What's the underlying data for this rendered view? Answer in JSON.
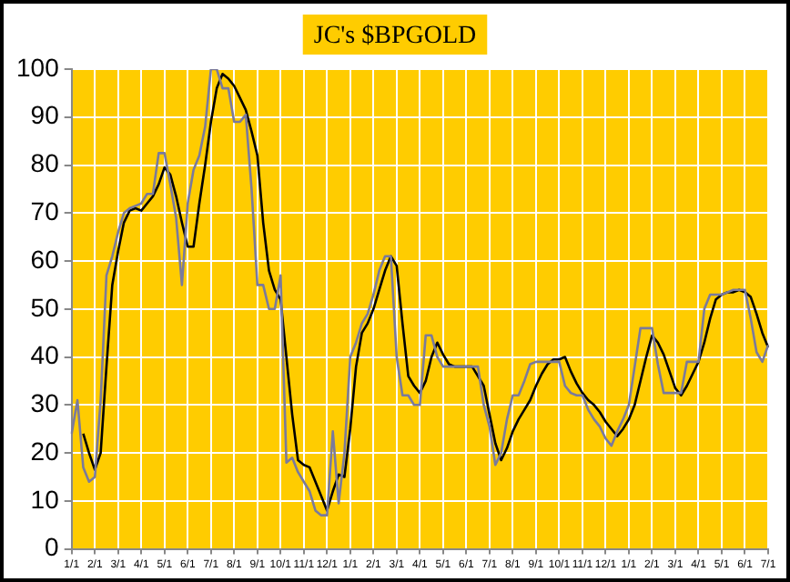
{
  "chart_data": {
    "type": "line",
    "title": "JC's $BPGOLD",
    "categories": [
      "1/1",
      null,
      null,
      null,
      "2/1",
      null,
      null,
      null,
      "3/1",
      null,
      null,
      null,
      "4/1",
      null,
      null,
      null,
      "5/1",
      null,
      null,
      null,
      "6/1",
      null,
      null,
      null,
      "7/1",
      null,
      null,
      null,
      "8/1",
      null,
      null,
      null,
      "9/1",
      null,
      null,
      null,
      "10/1",
      null,
      null,
      null,
      "11/1",
      null,
      null,
      null,
      "12/1",
      null,
      null,
      null,
      "1/1",
      null,
      null,
      null,
      "2/1",
      null,
      null,
      null,
      "3/1",
      null,
      null,
      null,
      "4/1",
      null,
      null,
      null,
      "5/1",
      null,
      null,
      null,
      "6/1",
      null,
      null,
      null,
      "7/1",
      null,
      null,
      null,
      "8/1",
      null,
      null,
      null,
      "9/1",
      null,
      null,
      null,
      "10/1",
      null,
      null,
      null,
      "11/1",
      null,
      null,
      null,
      "12/1",
      null,
      null,
      null,
      "1/1",
      null,
      null,
      null,
      "2/1",
      null,
      null,
      null,
      "3/1",
      null,
      null,
      null,
      "4/1",
      null,
      null,
      null,
      "5/1",
      null,
      null,
      null,
      "6/1",
      null,
      null,
      null,
      "7/1"
    ],
    "ylim": [
      0,
      100
    ],
    "yticks": [
      0,
      10,
      20,
      30,
      40,
      50,
      60,
      70,
      80,
      90,
      100
    ],
    "grid": true,
    "marker": "none",
    "line_style": "solid",
    "series": [
      {
        "color": "#7a7a9c",
        "values": [
          24,
          31,
          17,
          14,
          15,
          31,
          57,
          61,
          66,
          70,
          71,
          71.5,
          72,
          74,
          74,
          82.5,
          82.5,
          76,
          69,
          55,
          72,
          79,
          82,
          88,
          100,
          100,
          96,
          96,
          89,
          89,
          90.5,
          75,
          55,
          55,
          50,
          50,
          57,
          18,
          19,
          16,
          14,
          12,
          8,
          7,
          7,
          24.5,
          9.5,
          20,
          40,
          43,
          47,
          49,
          53,
          58,
          61,
          61,
          40,
          32,
          32,
          30,
          30,
          44.5,
          44.5,
          40,
          38,
          38,
          38,
          38,
          38,
          38,
          38,
          30,
          25.5,
          17.5,
          20,
          27,
          32,
          32,
          35,
          38.5,
          39,
          39,
          39,
          39,
          39,
          34,
          32.5,
          32,
          32,
          29,
          27,
          25.5,
          23,
          21.5,
          24.5,
          27,
          30,
          38,
          46,
          46,
          46,
          38.5,
          32.5,
          32.5,
          32.5,
          32.5,
          39,
          39,
          39,
          50,
          53,
          53,
          53,
          53.5,
          54,
          54,
          54,
          48,
          41,
          39,
          42.5
        ]
      },
      {
        "color": "#000000",
        "values": [
          null,
          null,
          24,
          20,
          16.5,
          20,
          38,
          55,
          62,
          68,
          70.5,
          71,
          70.5,
          72,
          73.5,
          76,
          79.5,
          78,
          73.5,
          68,
          63,
          63,
          72,
          80,
          89,
          96,
          99,
          98,
          96.5,
          94,
          91.5,
          87,
          82,
          68,
          58,
          54,
          52,
          40,
          28,
          18.5,
          17.5,
          17,
          14,
          11,
          8,
          12,
          15.5,
          15,
          25,
          38,
          45,
          47,
          50,
          54,
          58,
          61,
          59,
          47,
          36,
          34,
          32.5,
          35,
          40,
          43,
          40.5,
          38.5,
          38,
          38,
          38,
          38,
          36,
          34,
          28,
          22,
          18.5,
          21,
          24.5,
          27,
          29,
          31,
          34,
          36.5,
          38.5,
          39.5,
          39.5,
          40,
          37,
          34.5,
          32.5,
          31,
          30,
          28.5,
          26.5,
          25,
          23.5,
          25,
          27,
          30,
          35,
          40,
          44.5,
          43,
          40.5,
          37,
          33.5,
          32,
          34,
          36.5,
          39,
          43,
          48,
          52,
          53,
          53.5,
          53.5,
          54,
          53.5,
          52.5,
          49,
          45,
          42
        ]
      }
    ]
  }
}
